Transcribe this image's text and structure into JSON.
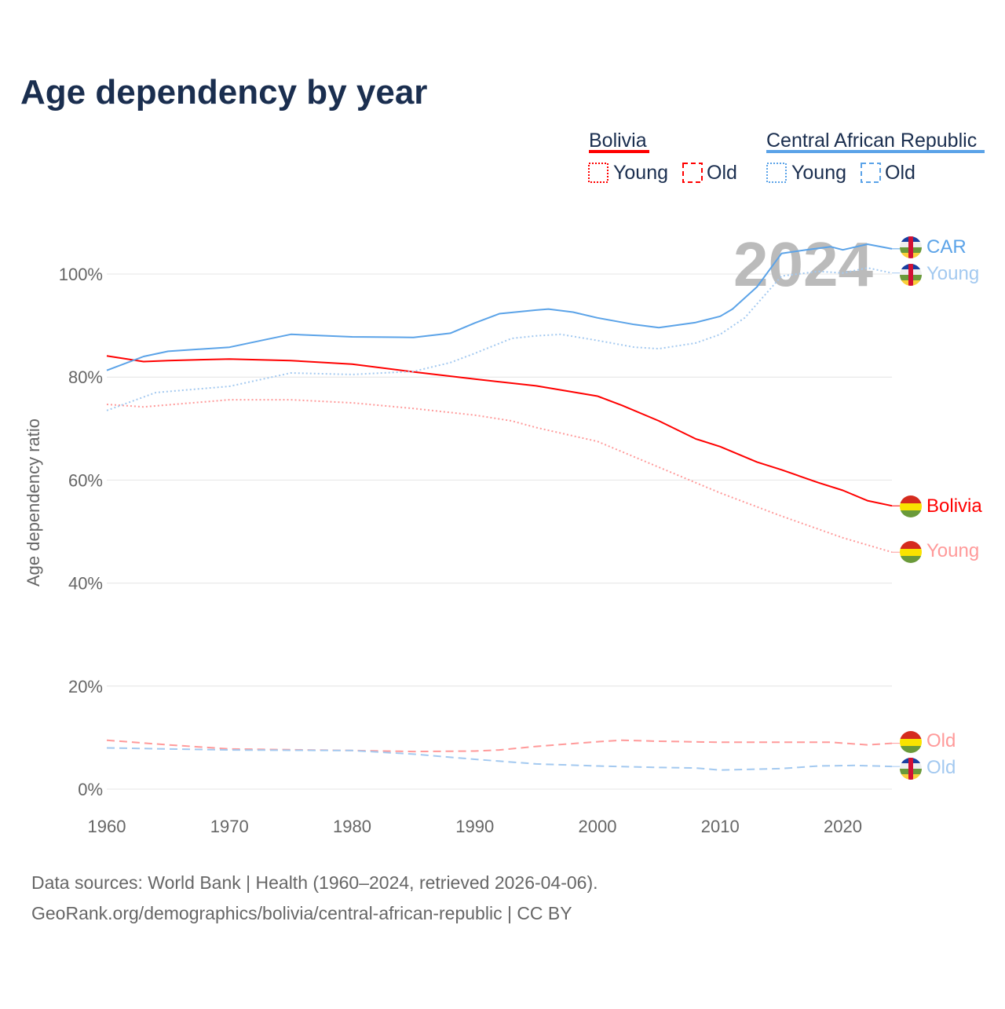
{
  "chart_data": {
    "type": "line",
    "title": "Age dependency by year",
    "xlabel": "",
    "ylabel": "Age dependency ratio",
    "xlim": [
      1960,
      2024
    ],
    "ylim": [
      0,
      110
    ],
    "x_ticks": [
      "1960",
      "1970",
      "1980",
      "1990",
      "2000",
      "2010",
      "2020"
    ],
    "y_ticks": [
      "0%",
      "20%",
      "40%",
      "60%",
      "80%",
      "100%"
    ],
    "grid": true,
    "year_watermark": "2024",
    "legend": {
      "placement": "top-right",
      "groups": [
        {
          "name": "Bolivia",
          "items": [
            "Young",
            "Old"
          ],
          "color": "#ff0000"
        },
        {
          "name": "Central African Republic",
          "items": [
            "Young",
            "Old"
          ],
          "color": "#5ba3e8"
        }
      ]
    },
    "series": [
      {
        "name": "Bolivia",
        "end_label": "Bolivia",
        "color": "#ff0000",
        "style": "solid",
        "points": [
          [
            1960,
            84.1
          ],
          [
            1963,
            83
          ],
          [
            1965,
            83.2
          ],
          [
            1970,
            83.5
          ],
          [
            1975,
            83.2
          ],
          [
            1980,
            82.5
          ],
          [
            1985,
            81
          ],
          [
            1990,
            79.6
          ],
          [
            1995,
            78.3
          ],
          [
            2000,
            76.3
          ],
          [
            2002,
            74.5
          ],
          [
            2005,
            71.5
          ],
          [
            2008,
            68
          ],
          [
            2010,
            66.5
          ],
          [
            2013,
            63.5
          ],
          [
            2015,
            62
          ],
          [
            2018,
            59.5
          ],
          [
            2020,
            58
          ],
          [
            2022,
            56
          ],
          [
            2024,
            55
          ]
        ]
      },
      {
        "name": "Bolivia Young",
        "end_label": "Young",
        "color": "#ff9a9a",
        "style": "dotted",
        "points": [
          [
            1960,
            74.7
          ],
          [
            1963,
            74.2
          ],
          [
            1970,
            75.6
          ],
          [
            1975,
            75.6
          ],
          [
            1980,
            75
          ],
          [
            1985,
            73.9
          ],
          [
            1990,
            72.6
          ],
          [
            1993,
            71.5
          ],
          [
            1995,
            70.2
          ],
          [
            2000,
            67.5
          ],
          [
            2003,
            64.5
          ],
          [
            2005,
            62.5
          ],
          [
            2008,
            59.5
          ],
          [
            2010,
            57.5
          ],
          [
            2015,
            53
          ],
          [
            2020,
            48.8
          ],
          [
            2024,
            46
          ]
        ]
      },
      {
        "name": "Bolivia Old",
        "end_label": "Old",
        "color": "#ff9a9a",
        "style": "dashed",
        "points": [
          [
            1960,
            9.5
          ],
          [
            1965,
            8.6
          ],
          [
            1970,
            7.8
          ],
          [
            1980,
            7.5
          ],
          [
            1985,
            7.3
          ],
          [
            1990,
            7.4
          ],
          [
            1992,
            7.6
          ],
          [
            1995,
            8.3
          ],
          [
            2000,
            9.2
          ],
          [
            2002,
            9.5
          ],
          [
            2005,
            9.3
          ],
          [
            2010,
            9.1
          ],
          [
            2015,
            9.1
          ],
          [
            2019,
            9.1
          ],
          [
            2022,
            8.6
          ],
          [
            2024,
            8.9
          ]
        ]
      },
      {
        "name": "Central African Republic",
        "end_label": "CAR",
        "color": "#5ba3e8",
        "style": "solid",
        "points": [
          [
            1960,
            81.3
          ],
          [
            1963,
            84
          ],
          [
            1965,
            85
          ],
          [
            1970,
            85.8
          ],
          [
            1973,
            87.3
          ],
          [
            1975,
            88.3
          ],
          [
            1980,
            87.8
          ],
          [
            1985,
            87.7
          ],
          [
            1988,
            88.5
          ],
          [
            1990,
            90.5
          ],
          [
            1992,
            92.3
          ],
          [
            1995,
            93
          ],
          [
            1996,
            93.2
          ],
          [
            1998,
            92.6
          ],
          [
            2000,
            91.5
          ],
          [
            2003,
            90.2
          ],
          [
            2005,
            89.6
          ],
          [
            2008,
            90.6
          ],
          [
            2010,
            91.8
          ],
          [
            2011,
            93.2
          ],
          [
            2013,
            97.5
          ],
          [
            2015,
            104
          ],
          [
            2017,
            104.7
          ],
          [
            2019,
            105.3
          ],
          [
            2020,
            104.7
          ],
          [
            2022,
            105.8
          ],
          [
            2024,
            104.9
          ]
        ]
      },
      {
        "name": "Central African Republic Young",
        "end_label": "Young",
        "color": "#a3c9f0",
        "style": "dotted",
        "points": [
          [
            1960,
            73.5
          ],
          [
            1964,
            77
          ],
          [
            1970,
            78.2
          ],
          [
            1975,
            80.8
          ],
          [
            1980,
            80.5
          ],
          [
            1985,
            81.1
          ],
          [
            1988,
            82.8
          ],
          [
            1990,
            84.6
          ],
          [
            1993,
            87.5
          ],
          [
            1995,
            88
          ],
          [
            1997,
            88.3
          ],
          [
            2000,
            87.1
          ],
          [
            2003,
            85.8
          ],
          [
            2005,
            85.5
          ],
          [
            2008,
            86.6
          ],
          [
            2010,
            88.3
          ],
          [
            2012,
            91.5
          ],
          [
            2015,
            99.6
          ],
          [
            2018,
            100.5
          ],
          [
            2020,
            100.2
          ],
          [
            2022,
            101.2
          ],
          [
            2024,
            100.2
          ]
        ]
      },
      {
        "name": "Central African Republic Old",
        "end_label": "Old",
        "color": "#a3c9f0",
        "style": "dashed",
        "points": [
          [
            1960,
            8
          ],
          [
            1970,
            7.6
          ],
          [
            1980,
            7.5
          ],
          [
            1985,
            6.8
          ],
          [
            1990,
            5.8
          ],
          [
            1995,
            4.9
          ],
          [
            2000,
            4.5
          ],
          [
            2005,
            4.2
          ],
          [
            2008,
            4.1
          ],
          [
            2010,
            3.7
          ],
          [
            2015,
            4
          ],
          [
            2018,
            4.5
          ],
          [
            2021,
            4.6
          ],
          [
            2024,
            4.4
          ]
        ]
      }
    ]
  },
  "footer": {
    "source": "Data sources: World Bank | Health (1960–2024, retrieved 2026-04-06).",
    "link": "GeoRank.org/demographics/bolivia/central-african-republic | CC BY"
  }
}
